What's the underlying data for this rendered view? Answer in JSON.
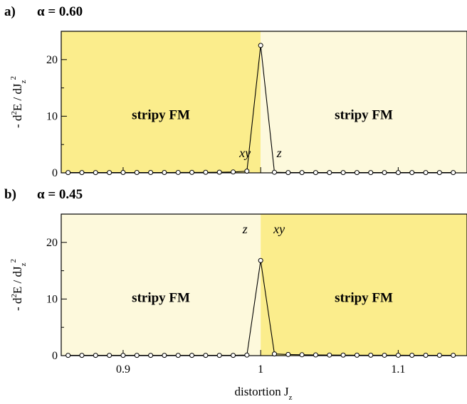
{
  "colors": {
    "fill_strong": "#fbed8c",
    "fill_light": "#fdf9dc",
    "line": "#000000",
    "marker_fill": "#ffffff"
  },
  "chart_data": [
    {
      "type": "line",
      "panel_letter": "a)",
      "title": "α = 0.60",
      "xlabel": "",
      "ylabel_main": "- d",
      "ylabel_sup1": "2",
      "ylabel_mid": "E / dJ",
      "ylabel_sub": "z",
      "ylabel_sup2": "2",
      "xlim": [
        0.855,
        1.15
      ],
      "ylim": [
        0,
        25
      ],
      "yticks": [
        0,
        10,
        20
      ],
      "ytick_labels": [
        "0",
        "10",
        "20"
      ],
      "xticks": [
        0.9,
        1.0,
        1.1
      ],
      "xtick_labels": [],
      "regions": [
        {
          "from": 0.855,
          "to": 1.0,
          "shade": "strong",
          "label": "stripy FM",
          "state": "xy"
        },
        {
          "from": 1.0,
          "to": 1.15,
          "shade": "light",
          "label": "stripy FM",
          "state": "z"
        }
      ],
      "series": [
        {
          "x": [
            0.86,
            0.87,
            0.88,
            0.89,
            0.9,
            0.91,
            0.92,
            0.93,
            0.94,
            0.95,
            0.96,
            0.97,
            0.98,
            0.99,
            1.0,
            1.01,
            1.02,
            1.03,
            1.04,
            1.05,
            1.06,
            1.07,
            1.08,
            1.09,
            1.1,
            1.11,
            1.12,
            1.13,
            1.14
          ],
          "y": [
            0.05,
            0.05,
            0.05,
            0.05,
            0.06,
            0.06,
            0.06,
            0.06,
            0.07,
            0.08,
            0.09,
            0.11,
            0.15,
            0.3,
            22.5,
            0.1,
            0.05,
            0.05,
            0.05,
            0.05,
            0.05,
            0.05,
            0.05,
            0.05,
            0.05,
            0.05,
            0.05,
            0.05,
            0.05
          ]
        }
      ]
    },
    {
      "type": "line",
      "panel_letter": "b)",
      "title": "α = 0.45",
      "xlabel_main": "distortion  J",
      "xlabel_sub": "z",
      "ylabel_main": "- d",
      "ylabel_sup1": "2",
      "ylabel_mid": "E / dJ",
      "ylabel_sub": "z",
      "ylabel_sup2": "2",
      "xlim": [
        0.855,
        1.15
      ],
      "ylim": [
        0,
        25
      ],
      "yticks": [
        0,
        10,
        20
      ],
      "ytick_labels": [
        "0",
        "10",
        "20"
      ],
      "xticks": [
        0.9,
        1.0,
        1.1
      ],
      "xtick_labels": [
        "0.9",
        "1",
        "1.1"
      ],
      "regions": [
        {
          "from": 0.855,
          "to": 1.0,
          "shade": "light",
          "label": "stripy FM",
          "state": "z"
        },
        {
          "from": 1.0,
          "to": 1.15,
          "shade": "strong",
          "label": "stripy FM",
          "state": "xy"
        }
      ],
      "series": [
        {
          "x": [
            0.86,
            0.87,
            0.88,
            0.89,
            0.9,
            0.91,
            0.92,
            0.93,
            0.94,
            0.95,
            0.96,
            0.97,
            0.98,
            0.99,
            1.0,
            1.01,
            1.02,
            1.03,
            1.04,
            1.05,
            1.06,
            1.07,
            1.08,
            1.09,
            1.1,
            1.11,
            1.12,
            1.13,
            1.14
          ],
          "y": [
            0.05,
            0.05,
            0.05,
            0.05,
            0.05,
            0.05,
            0.05,
            0.05,
            0.05,
            0.05,
            0.05,
            0.05,
            0.05,
            0.1,
            16.8,
            0.3,
            0.2,
            0.15,
            0.12,
            0.1,
            0.09,
            0.08,
            0.08,
            0.07,
            0.07,
            0.06,
            0.06,
            0.06,
            0.06
          ]
        }
      ]
    }
  ]
}
